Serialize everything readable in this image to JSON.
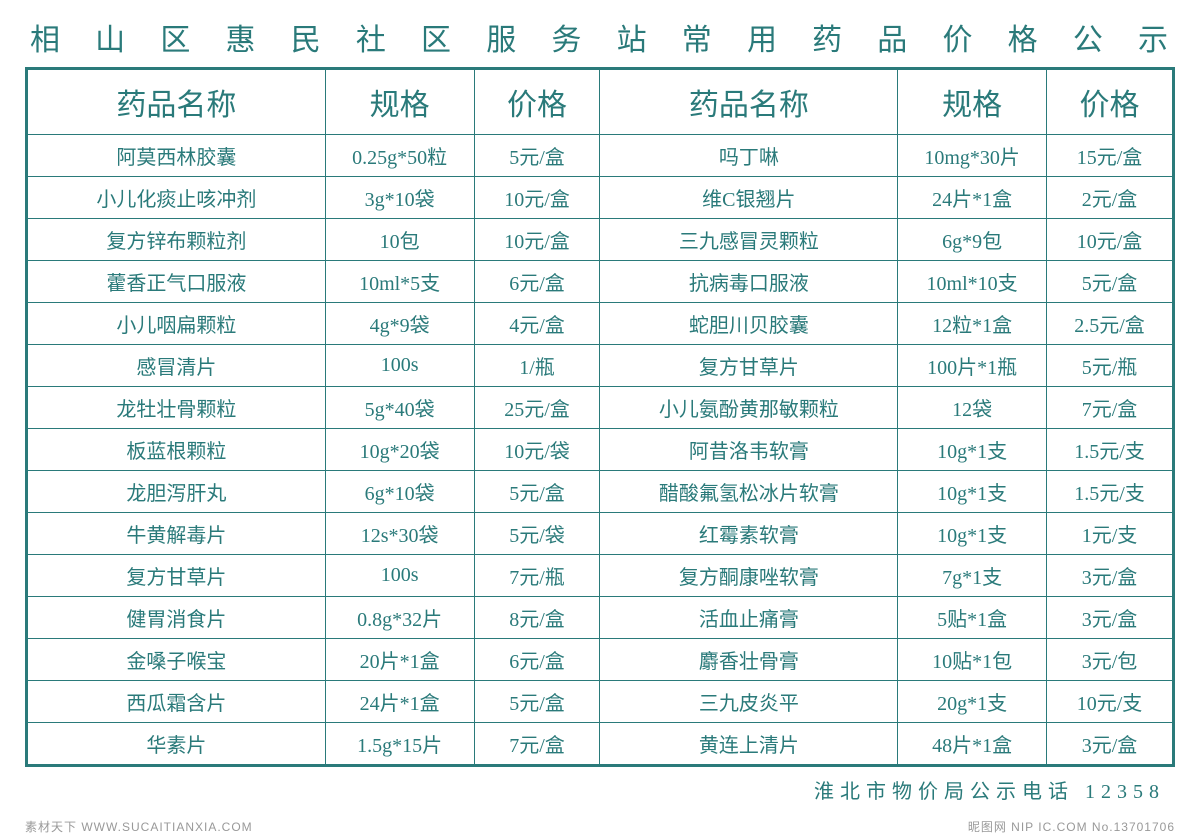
{
  "title": "相山区惠民社区服务站常用药品价格公示",
  "headers": {
    "name": "药品名称",
    "spec": "规格",
    "price": "价格"
  },
  "rows": [
    {
      "l_name": "阿莫西林胶囊",
      "l_spec": "0.25g*50粒",
      "l_price": "5元/盒",
      "r_name": "吗丁啉",
      "r_spec": "10mg*30片",
      "r_price": "15元/盒"
    },
    {
      "l_name": "小儿化痰止咳冲剂",
      "l_spec": "3g*10袋",
      "l_price": "10元/盒",
      "r_name": "维C银翘片",
      "r_spec": "24片*1盒",
      "r_price": "2元/盒"
    },
    {
      "l_name": "复方锌布颗粒剂",
      "l_spec": "10包",
      "l_price": "10元/盒",
      "r_name": "三九感冒灵颗粒",
      "r_spec": "6g*9包",
      "r_price": "10元/盒"
    },
    {
      "l_name": "藿香正气口服液",
      "l_spec": "10ml*5支",
      "l_price": "6元/盒",
      "r_name": "抗病毒口服液",
      "r_spec": "10ml*10支",
      "r_price": "5元/盒"
    },
    {
      "l_name": "小儿咽扁颗粒",
      "l_spec": "4g*9袋",
      "l_price": "4元/盒",
      "r_name": "蛇胆川贝胶囊",
      "r_spec": "12粒*1盒",
      "r_price": "2.5元/盒"
    },
    {
      "l_name": "感冒清片",
      "l_spec": "100s",
      "l_price": "1/瓶",
      "r_name": "复方甘草片",
      "r_spec": "100片*1瓶",
      "r_price": "5元/瓶"
    },
    {
      "l_name": "龙牡壮骨颗粒",
      "l_spec": "5g*40袋",
      "l_price": "25元/盒",
      "r_name": "小儿氨酚黄那敏颗粒",
      "r_spec": "12袋",
      "r_price": "7元/盒"
    },
    {
      "l_name": "板蓝根颗粒",
      "l_spec": "10g*20袋",
      "l_price": "10元/袋",
      "r_name": "阿昔洛韦软膏",
      "r_spec": "10g*1支",
      "r_price": "1.5元/支"
    },
    {
      "l_name": "龙胆泻肝丸",
      "l_spec": "6g*10袋",
      "l_price": "5元/盒",
      "r_name": "醋酸氟氢松冰片软膏",
      "r_spec": "10g*1支",
      "r_price": "1.5元/支"
    },
    {
      "l_name": "牛黄解毒片",
      "l_spec": "12s*30袋",
      "l_price": "5元/袋",
      "r_name": "红霉素软膏",
      "r_spec": "10g*1支",
      "r_price": "1元/支"
    },
    {
      "l_name": "复方甘草片",
      "l_spec": "100s",
      "l_price": "7元/瓶",
      "r_name": "复方酮康唑软膏",
      "r_spec": "7g*1支",
      "r_price": "3元/盒"
    },
    {
      "l_name": "健胃消食片",
      "l_spec": "0.8g*32片",
      "l_price": "8元/盒",
      "r_name": "活血止痛膏",
      "r_spec": "5贴*1盒",
      "r_price": "3元/盒"
    },
    {
      "l_name": "金嗓子喉宝",
      "l_spec": "20片*1盒",
      "l_price": "6元/盒",
      "r_name": "麝香壮骨膏",
      "r_spec": "10贴*1包",
      "r_price": "3元/包"
    },
    {
      "l_name": "西瓜霜含片",
      "l_spec": "24片*1盒",
      "l_price": "5元/盒",
      "r_name": "三九皮炎平",
      "r_spec": "20g*1支",
      "r_price": "10元/支"
    },
    {
      "l_name": "华素片",
      "l_spec": "1.5g*15片",
      "l_price": "7元/盒",
      "r_name": "黄连上清片",
      "r_spec": "48片*1盒",
      "r_price": "3元/盒"
    }
  ],
  "footer": "淮北市物价局公示电话 12358",
  "watermark_left": "素材天下 WWW.SUCAITIANXIA.COM",
  "watermark_right": "昵图网 NIP IC.COM No.13701706",
  "colors": {
    "primary": "#2a7a7a",
    "background": "#ffffff",
    "watermark": "#999999"
  },
  "typography": {
    "title_fontsize": 30,
    "header_fontsize": 30,
    "cell_fontsize": 20,
    "footer_fontsize": 20
  }
}
